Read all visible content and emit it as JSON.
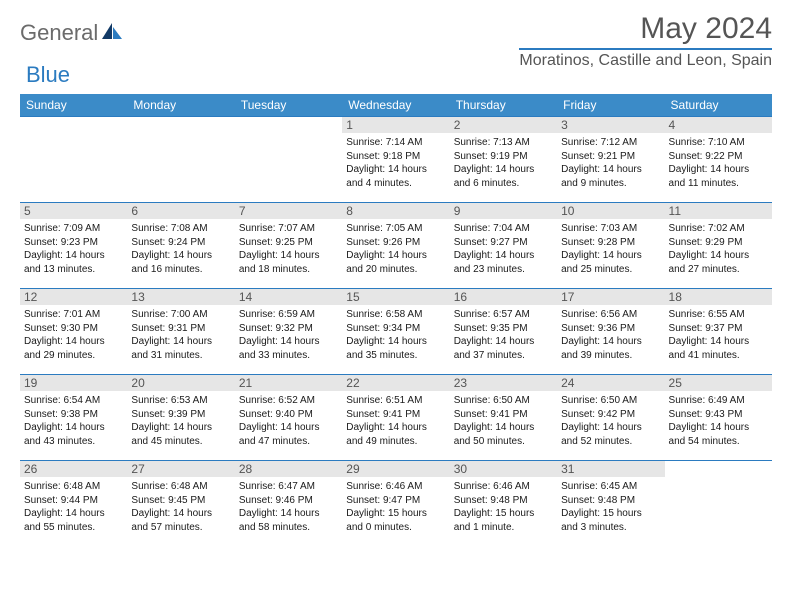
{
  "brand": {
    "part1": "General",
    "part2": "Blue"
  },
  "title": "May 2024",
  "location": "Moratinos, Castille and Leon, Spain",
  "colors": {
    "header_bg": "#3b8bc8",
    "accent": "#2b7bc0",
    "daynum_bg": "#e6e6e6",
    "text": "#1a1a1a",
    "muted": "#555555"
  },
  "weekdays": [
    "Sunday",
    "Monday",
    "Tuesday",
    "Wednesday",
    "Thursday",
    "Friday",
    "Saturday"
  ],
  "weeks": [
    [
      null,
      null,
      null,
      {
        "n": "1",
        "sr": "Sunrise: 7:14 AM",
        "ss": "Sunset: 9:18 PM",
        "dl": "Daylight: 14 hours and 4 minutes."
      },
      {
        "n": "2",
        "sr": "Sunrise: 7:13 AM",
        "ss": "Sunset: 9:19 PM",
        "dl": "Daylight: 14 hours and 6 minutes."
      },
      {
        "n": "3",
        "sr": "Sunrise: 7:12 AM",
        "ss": "Sunset: 9:21 PM",
        "dl": "Daylight: 14 hours and 9 minutes."
      },
      {
        "n": "4",
        "sr": "Sunrise: 7:10 AM",
        "ss": "Sunset: 9:22 PM",
        "dl": "Daylight: 14 hours and 11 minutes."
      }
    ],
    [
      {
        "n": "5",
        "sr": "Sunrise: 7:09 AM",
        "ss": "Sunset: 9:23 PM",
        "dl": "Daylight: 14 hours and 13 minutes."
      },
      {
        "n": "6",
        "sr": "Sunrise: 7:08 AM",
        "ss": "Sunset: 9:24 PM",
        "dl": "Daylight: 14 hours and 16 minutes."
      },
      {
        "n": "7",
        "sr": "Sunrise: 7:07 AM",
        "ss": "Sunset: 9:25 PM",
        "dl": "Daylight: 14 hours and 18 minutes."
      },
      {
        "n": "8",
        "sr": "Sunrise: 7:05 AM",
        "ss": "Sunset: 9:26 PM",
        "dl": "Daylight: 14 hours and 20 minutes."
      },
      {
        "n": "9",
        "sr": "Sunrise: 7:04 AM",
        "ss": "Sunset: 9:27 PM",
        "dl": "Daylight: 14 hours and 23 minutes."
      },
      {
        "n": "10",
        "sr": "Sunrise: 7:03 AM",
        "ss": "Sunset: 9:28 PM",
        "dl": "Daylight: 14 hours and 25 minutes."
      },
      {
        "n": "11",
        "sr": "Sunrise: 7:02 AM",
        "ss": "Sunset: 9:29 PM",
        "dl": "Daylight: 14 hours and 27 minutes."
      }
    ],
    [
      {
        "n": "12",
        "sr": "Sunrise: 7:01 AM",
        "ss": "Sunset: 9:30 PM",
        "dl": "Daylight: 14 hours and 29 minutes."
      },
      {
        "n": "13",
        "sr": "Sunrise: 7:00 AM",
        "ss": "Sunset: 9:31 PM",
        "dl": "Daylight: 14 hours and 31 minutes."
      },
      {
        "n": "14",
        "sr": "Sunrise: 6:59 AM",
        "ss": "Sunset: 9:32 PM",
        "dl": "Daylight: 14 hours and 33 minutes."
      },
      {
        "n": "15",
        "sr": "Sunrise: 6:58 AM",
        "ss": "Sunset: 9:34 PM",
        "dl": "Daylight: 14 hours and 35 minutes."
      },
      {
        "n": "16",
        "sr": "Sunrise: 6:57 AM",
        "ss": "Sunset: 9:35 PM",
        "dl": "Daylight: 14 hours and 37 minutes."
      },
      {
        "n": "17",
        "sr": "Sunrise: 6:56 AM",
        "ss": "Sunset: 9:36 PM",
        "dl": "Daylight: 14 hours and 39 minutes."
      },
      {
        "n": "18",
        "sr": "Sunrise: 6:55 AM",
        "ss": "Sunset: 9:37 PM",
        "dl": "Daylight: 14 hours and 41 minutes."
      }
    ],
    [
      {
        "n": "19",
        "sr": "Sunrise: 6:54 AM",
        "ss": "Sunset: 9:38 PM",
        "dl": "Daylight: 14 hours and 43 minutes."
      },
      {
        "n": "20",
        "sr": "Sunrise: 6:53 AM",
        "ss": "Sunset: 9:39 PM",
        "dl": "Daylight: 14 hours and 45 minutes."
      },
      {
        "n": "21",
        "sr": "Sunrise: 6:52 AM",
        "ss": "Sunset: 9:40 PM",
        "dl": "Daylight: 14 hours and 47 minutes."
      },
      {
        "n": "22",
        "sr": "Sunrise: 6:51 AM",
        "ss": "Sunset: 9:41 PM",
        "dl": "Daylight: 14 hours and 49 minutes."
      },
      {
        "n": "23",
        "sr": "Sunrise: 6:50 AM",
        "ss": "Sunset: 9:41 PM",
        "dl": "Daylight: 14 hours and 50 minutes."
      },
      {
        "n": "24",
        "sr": "Sunrise: 6:50 AM",
        "ss": "Sunset: 9:42 PM",
        "dl": "Daylight: 14 hours and 52 minutes."
      },
      {
        "n": "25",
        "sr": "Sunrise: 6:49 AM",
        "ss": "Sunset: 9:43 PM",
        "dl": "Daylight: 14 hours and 54 minutes."
      }
    ],
    [
      {
        "n": "26",
        "sr": "Sunrise: 6:48 AM",
        "ss": "Sunset: 9:44 PM",
        "dl": "Daylight: 14 hours and 55 minutes."
      },
      {
        "n": "27",
        "sr": "Sunrise: 6:48 AM",
        "ss": "Sunset: 9:45 PM",
        "dl": "Daylight: 14 hours and 57 minutes."
      },
      {
        "n": "28",
        "sr": "Sunrise: 6:47 AM",
        "ss": "Sunset: 9:46 PM",
        "dl": "Daylight: 14 hours and 58 minutes."
      },
      {
        "n": "29",
        "sr": "Sunrise: 6:46 AM",
        "ss": "Sunset: 9:47 PM",
        "dl": "Daylight: 15 hours and 0 minutes."
      },
      {
        "n": "30",
        "sr": "Sunrise: 6:46 AM",
        "ss": "Sunset: 9:48 PM",
        "dl": "Daylight: 15 hours and 1 minute."
      },
      {
        "n": "31",
        "sr": "Sunrise: 6:45 AM",
        "ss": "Sunset: 9:48 PM",
        "dl": "Daylight: 15 hours and 3 minutes."
      },
      null
    ]
  ]
}
